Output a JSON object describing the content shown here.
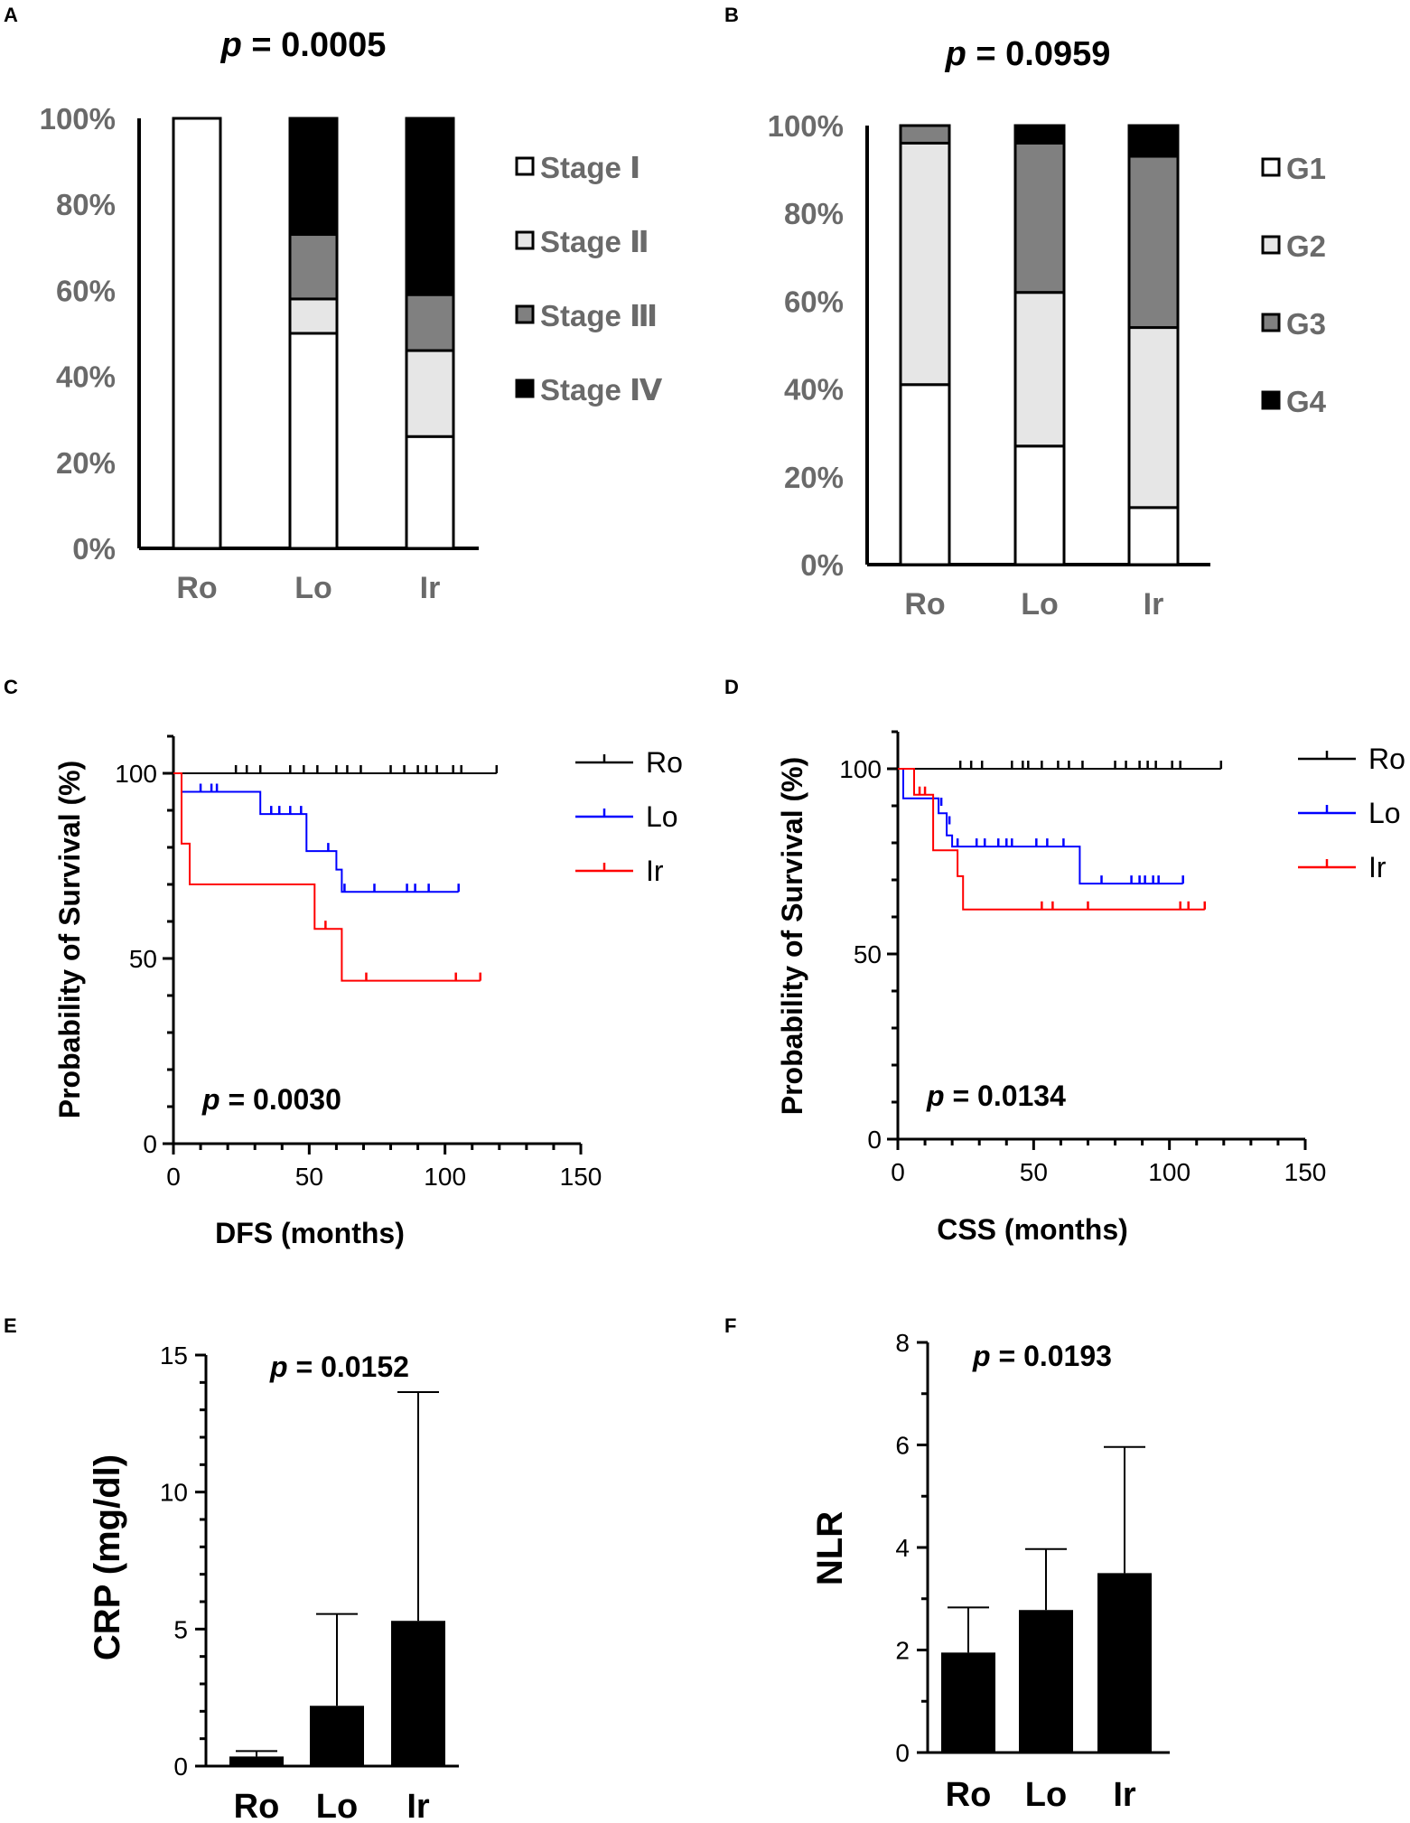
{
  "chart_data": [
    {
      "panel": "A",
      "type": "bar",
      "stacked": true,
      "title": "p = 0.0005",
      "p_label": "p",
      "p_value": "= 0.0005",
      "categories": [
        "Ro",
        "Lo",
        "Ir"
      ],
      "series": [
        {
          "name": "Stage Ⅰ",
          "color": "#ffffff",
          "values": [
            100,
            50,
            26
          ]
        },
        {
          "name": "Stage Ⅱ",
          "color": "#e6e6e6",
          "values": [
            0,
            8,
            20
          ]
        },
        {
          "name": "Stage Ⅲ",
          "color": "#808080",
          "values": [
            0,
            15,
            13
          ]
        },
        {
          "name": "Stage Ⅳ",
          "color": "#000000",
          "values": [
            0,
            27,
            41
          ]
        }
      ],
      "ylim": [
        0,
        100
      ],
      "yticks": [
        "0%",
        "20%",
        "40%",
        "60%",
        "80%",
        "100%"
      ],
      "xlabel": "",
      "ylabel": ""
    },
    {
      "panel": "B",
      "type": "bar",
      "stacked": true,
      "title": "p = 0.0959",
      "p_label": "p",
      "p_value": "= 0.0959",
      "categories": [
        "Ro",
        "Lo",
        "Ir"
      ],
      "series": [
        {
          "name": "G1",
          "color": "#ffffff",
          "values": [
            41,
            27,
            13
          ]
        },
        {
          "name": "G2",
          "color": "#e6e6e6",
          "values": [
            55,
            35,
            41
          ]
        },
        {
          "name": "G3",
          "color": "#808080",
          "values": [
            4,
            34,
            39
          ]
        },
        {
          "name": "G4",
          "color": "#000000",
          "values": [
            0,
            4,
            7
          ]
        }
      ],
      "ylim": [
        0,
        100
      ],
      "yticks": [
        "0%",
        "20%",
        "40%",
        "60%",
        "80%",
        "100%"
      ],
      "xlabel": "",
      "ylabel": ""
    },
    {
      "panel": "C",
      "type": "line",
      "kind": "kaplan-meier",
      "xlabel": "DFS (months)",
      "ylabel": "Probability of Survival (%)",
      "xlim": [
        0,
        150
      ],
      "ylim": [
        0,
        110
      ],
      "xticks": [
        0,
        50,
        100,
        150
      ],
      "yticks": [
        0,
        50,
        100
      ],
      "p_label": "p",
      "p_value": "= 0.0030",
      "series": [
        {
          "name": "Ro",
          "color": "#000000",
          "steps": [
            [
              0,
              100
            ],
            [
              119,
              100
            ]
          ],
          "censor": [
            [
              23,
              100
            ],
            [
              27,
              100
            ],
            [
              32,
              100
            ],
            [
              43,
              100
            ],
            [
              48,
              100
            ],
            [
              53,
              100
            ],
            [
              60,
              100
            ],
            [
              64,
              100
            ],
            [
              69,
              100
            ],
            [
              80,
              100
            ],
            [
              85,
              100
            ],
            [
              90,
              100
            ],
            [
              93,
              100
            ],
            [
              97,
              100
            ],
            [
              103,
              100
            ],
            [
              106,
              100
            ],
            [
              119,
              100
            ]
          ]
        },
        {
          "name": "Lo",
          "color": "#0000ff",
          "steps": [
            [
              0,
              100
            ],
            [
              3,
              100
            ],
            [
              3,
              95
            ],
            [
              32,
              95
            ],
            [
              32,
              89
            ],
            [
              49,
              89
            ],
            [
              49,
              79
            ],
            [
              60,
              79
            ],
            [
              60,
              74
            ],
            [
              62,
              74
            ],
            [
              62,
              68
            ],
            [
              105,
              68
            ]
          ],
          "censor": [
            [
              10,
              95
            ],
            [
              14,
              95
            ],
            [
              16,
              95
            ],
            [
              36,
              89
            ],
            [
              39,
              89
            ],
            [
              43,
              89
            ],
            [
              47,
              89
            ],
            [
              57,
              79
            ],
            [
              63,
              68
            ],
            [
              74,
              68
            ],
            [
              86,
              68
            ],
            [
              89,
              68
            ],
            [
              94,
              68
            ],
            [
              105,
              68
            ]
          ]
        },
        {
          "name": "Ir",
          "color": "#ff0000",
          "steps": [
            [
              0,
              100
            ],
            [
              3,
              100
            ],
            [
              3,
              81
            ],
            [
              6,
              81
            ],
            [
              6,
              70
            ],
            [
              52,
              70
            ],
            [
              52,
              58
            ],
            [
              62,
              58
            ],
            [
              62,
              44
            ],
            [
              113,
              44
            ]
          ],
          "censor": [
            [
              56,
              58
            ],
            [
              71,
              44
            ],
            [
              104,
              44
            ],
            [
              113,
              44
            ]
          ]
        }
      ]
    },
    {
      "panel": "D",
      "type": "line",
      "kind": "kaplan-meier",
      "xlabel": "CSS (months)",
      "ylabel": "Probability of Survival (%)",
      "xlim": [
        0,
        150
      ],
      "ylim": [
        0,
        110
      ],
      "xticks": [
        0,
        50,
        100,
        150
      ],
      "yticks": [
        0,
        50,
        100
      ],
      "p_label": "p",
      "p_value": "= 0.0134",
      "series": [
        {
          "name": "Ro",
          "color": "#000000",
          "steps": [
            [
              0,
              100
            ],
            [
              119,
              100
            ]
          ],
          "censor": [
            [
              23,
              100
            ],
            [
              27,
              100
            ],
            [
              31,
              100
            ],
            [
              42,
              100
            ],
            [
              46,
              100
            ],
            [
              48,
              100
            ],
            [
              53,
              100
            ],
            [
              59,
              100
            ],
            [
              63,
              100
            ],
            [
              68,
              100
            ],
            [
              80,
              100
            ],
            [
              84,
              100
            ],
            [
              89,
              100
            ],
            [
              92,
              100
            ],
            [
              95,
              100
            ],
            [
              101,
              100
            ],
            [
              104,
              100
            ],
            [
              119,
              100
            ]
          ]
        },
        {
          "name": "Lo",
          "color": "#0000ff",
          "steps": [
            [
              0,
              100
            ],
            [
              2,
              100
            ],
            [
              2,
              92
            ],
            [
              15,
              92
            ],
            [
              15,
              88
            ],
            [
              18,
              88
            ],
            [
              18,
              82
            ],
            [
              20,
              82
            ],
            [
              20,
              79
            ],
            [
              67,
              79
            ],
            [
              67,
              69
            ],
            [
              105,
              69
            ]
          ],
          "censor": [
            [
              16,
              90
            ],
            [
              19,
              85
            ],
            [
              22,
              79
            ],
            [
              29,
              79
            ],
            [
              32,
              79
            ],
            [
              37,
              79
            ],
            [
              40,
              79
            ],
            [
              42,
              79
            ],
            [
              51,
              79
            ],
            [
              55,
              79
            ],
            [
              61,
              79
            ],
            [
              75,
              69
            ],
            [
              86,
              69
            ],
            [
              89,
              69
            ],
            [
              91,
              69
            ],
            [
              94,
              69
            ],
            [
              96,
              69
            ],
            [
              105,
              69
            ]
          ]
        },
        {
          "name": "Ir",
          "color": "#ff0000",
          "steps": [
            [
              0,
              100
            ],
            [
              6,
              100
            ],
            [
              6,
              93
            ],
            [
              13,
              93
            ],
            [
              13,
              78
            ],
            [
              22,
              78
            ],
            [
              22,
              71
            ],
            [
              24,
              71
            ],
            [
              24,
              62
            ],
            [
              113,
              62
            ]
          ],
          "censor": [
            [
              8,
              93
            ],
            [
              10,
              93
            ],
            [
              53,
              62
            ],
            [
              57,
              62
            ],
            [
              70,
              62
            ],
            [
              104,
              62
            ],
            [
              107,
              62
            ],
            [
              113,
              62
            ]
          ]
        }
      ]
    },
    {
      "panel": "E",
      "type": "bar",
      "ylabel": "CRP (mg/dl)",
      "xlabel": "",
      "p_label": "p",
      "p_value": "= 0.0152",
      "categories": [
        "Ro",
        "Lo",
        "Ir"
      ],
      "values": [
        0.35,
        2.2,
        5.3
      ],
      "errors": [
        0.55,
        5.55,
        13.65
      ],
      "ylim": [
        0,
        15
      ],
      "yticks": [
        0,
        5,
        10,
        15
      ]
    },
    {
      "panel": "F",
      "type": "bar",
      "ylabel": "NLR",
      "xlabel": "",
      "p_label": "p",
      "p_value": "= 0.0193",
      "categories": [
        "Ro",
        "Lo",
        "Ir"
      ],
      "values": [
        1.95,
        2.78,
        3.5
      ],
      "errors": [
        2.83,
        3.97,
        5.96
      ],
      "ylim": [
        0,
        8
      ],
      "yticks": [
        0,
        2,
        4,
        6,
        8
      ]
    }
  ]
}
